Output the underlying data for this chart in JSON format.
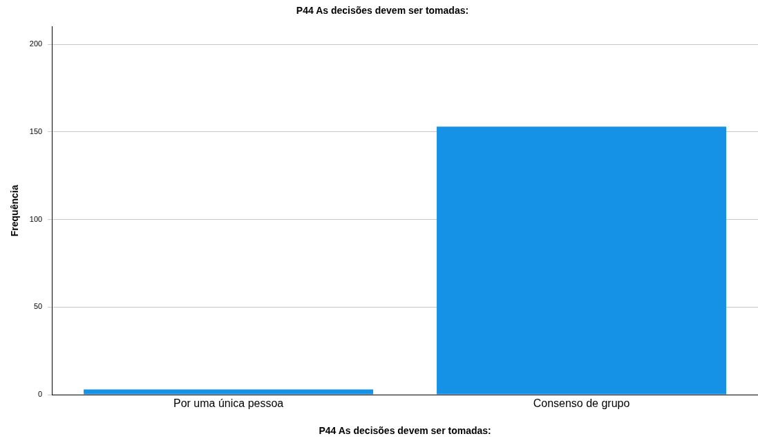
{
  "chart_data": {
    "type": "bar",
    "title": "P44 As decisões devem ser tomadas:",
    "xlabel": "P44 As decisões devem ser tomadas:",
    "ylabel": "Frequência",
    "categories": [
      "Por uma única pessoa",
      "Consenso de grupo"
    ],
    "values": [
      3,
      153
    ],
    "color": "#1591e6",
    "ylim": [
      0,
      210
    ],
    "yticks": [
      0,
      50,
      100,
      150,
      200
    ],
    "grid": "y",
    "legend": false
  }
}
